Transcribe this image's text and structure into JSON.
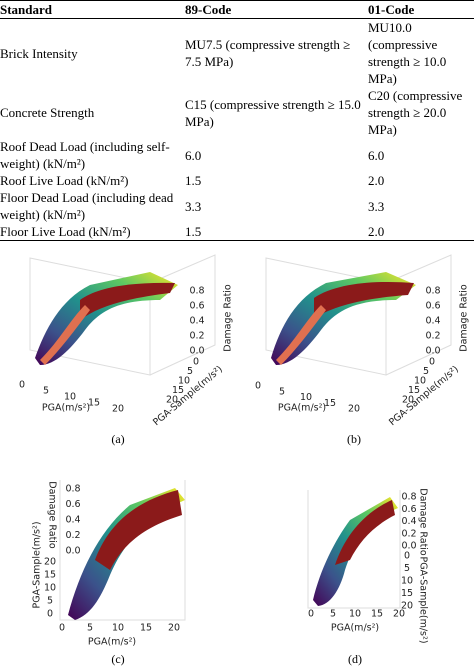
{
  "table": {
    "header": [
      "Standard",
      "89-Code",
      "01-Code"
    ],
    "rows": [
      [
        "Brick Intensity",
        "MU7.5 (compressive strength ≥ 7.5 MPa)",
        "MU10.0 (compressive strength ≥ 10.0 MPa)"
      ],
      [
        "Concrete Strength",
        "C15 (compressive strength ≥ 15.0 MPa)",
        "C20 (compressive strength ≥ 20.0 MPa)"
      ],
      [
        "Roof Dead Load (including self-weight) (kN/m²)",
        "6.0",
        "6.0"
      ],
      [
        "Roof Live Load (kN/m²)",
        "1.5",
        "2.0"
      ],
      [
        "Floor Dead Load (including dead weight) (kN/m²)",
        "3.3",
        "3.3"
      ],
      [
        "Floor Live Load (kN/m²)",
        "1.5",
        "2.0"
      ]
    ]
  },
  "figures": [
    {
      "caption": "(a)",
      "x_label": "PGA(m/s²)",
      "x_ticks": [
        0,
        5,
        10,
        15,
        20
      ],
      "y_label": "PGA-Sample(m/s²)",
      "y_ticks": [
        0,
        5,
        10,
        15,
        20
      ],
      "z_label": "Damage Ratio",
      "z_ticks": [
        "0.0",
        "0.2",
        "0.4",
        "0.6",
        "0.8"
      ]
    },
    {
      "caption": "(b)",
      "x_label": "PGA(m/s²)",
      "x_ticks": [
        0,
        5,
        10,
        15,
        20
      ],
      "y_label": "PGA-Sample(m/s²)",
      "y_ticks": [
        0,
        5,
        10,
        15,
        20
      ],
      "z_label": "Damage Ratio",
      "z_ticks": [
        "0.0",
        "0.2",
        "0.4",
        "0.6",
        "0.8"
      ]
    },
    {
      "caption": "(c)",
      "x_label": "PGA(m/s²)",
      "x_ticks": [
        0,
        5,
        10,
        15,
        20
      ],
      "y_label": "PGA-Sample(m/s²)",
      "y_ticks": [
        0,
        5,
        10,
        15,
        20
      ],
      "z_label": "Damage Ratio",
      "z_ticks": [
        "0.0",
        "0.2",
        "0.4",
        "0.6",
        "0.8"
      ]
    },
    {
      "caption": "(d)",
      "x_label": "PGA(m/s²)",
      "x_ticks": [
        0,
        5,
        10,
        15,
        20
      ],
      "y_label": "PGA-Sample(m/s²)",
      "y_ticks": [
        0,
        5,
        10,
        15,
        20
      ],
      "z_label": "Damage Ratio",
      "z_ticks": [
        "0.0",
        "0.2",
        "0.4",
        "0.6",
        "0.8"
      ]
    }
  ]
}
